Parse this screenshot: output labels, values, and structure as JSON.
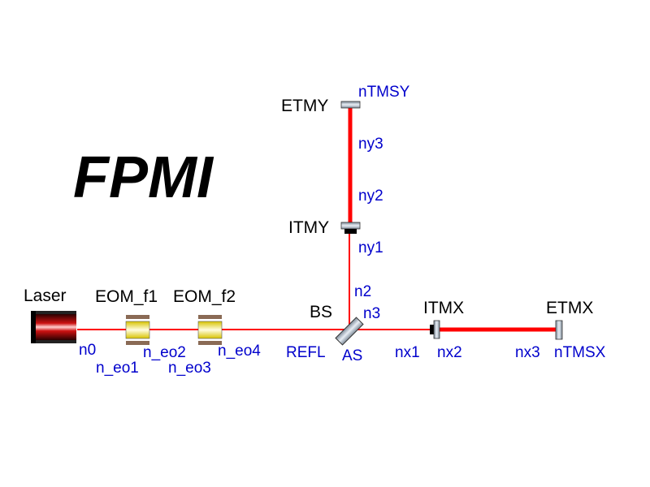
{
  "title": "FPMI",
  "colors": {
    "beam": "#ff0000",
    "node_label": "#0000cc",
    "component_label": "#000000"
  },
  "components": {
    "laser": "Laser",
    "eom1": "EOM_f1",
    "eom2": "EOM_f2",
    "bs": "BS",
    "itmx": "ITMX",
    "etmx": "ETMX",
    "itmy": "ITMY",
    "etmy": "ETMY"
  },
  "nodes": {
    "n0": "n0",
    "n_eo1": "n_eo1",
    "n_eo2": "n_eo2",
    "n_eo3": "n_eo3",
    "n_eo4": "n_eo4",
    "refl": "REFL",
    "as": "AS",
    "n2": "n2",
    "n3": "n3",
    "nx1": "nx1",
    "nx2": "nx2",
    "nx3": "nx3",
    "ntmsx": "nTMSX",
    "ny1": "ny1",
    "ny2": "ny2",
    "ny3": "ny3",
    "ntmsy": "nTMSY"
  }
}
